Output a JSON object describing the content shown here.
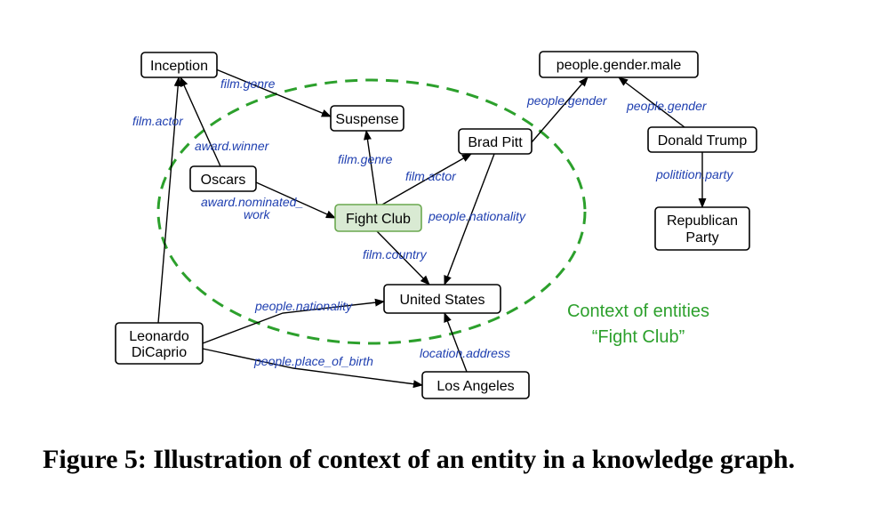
{
  "nodes": {
    "inception": "Inception",
    "suspense": "Suspense",
    "oscars": "Oscars",
    "fight_club": "Fight Club",
    "brad_pitt": "Brad Pitt",
    "people_gender_male": "people.gender.male",
    "donald_trump": "Donald Trump",
    "republican_party_line1": "Republican",
    "republican_party_line2": "Party",
    "united_states": "United States",
    "leonardo_line1": "Leonardo",
    "leonardo_line2": "DiCaprio",
    "los_angeles": "Los Angeles"
  },
  "edges": {
    "film_genre_inception": "film.genre",
    "film_actor_leonardo": "film.actor",
    "award_winner": "award.winner",
    "award_nominated_line1": "award.nominated_",
    "award_nominated_line2": "work",
    "film_genre_fightclub": "film.genre",
    "film_actor_bradpitt": "film.actor",
    "people_nationality_bradpitt": "people.nationality",
    "film_country": "film.country",
    "people_gender_bradpitt": "people.gender",
    "people_gender_trump": "people.gender",
    "politician_party": "politition.party",
    "people_nationality_leonardo": "people.nationality",
    "people_place_of_birth": "people.place_of_birth",
    "location_address": "location.address"
  },
  "context": {
    "line1": "Context of entities",
    "line2": "“Fight Club”",
    "color": "#2ca02c"
  },
  "colors": {
    "edge_label": "#1f3fb0",
    "highlight_fill": "#d9ead3",
    "highlight_stroke": "#6aa84f"
  },
  "caption": "Figure 5: Illustration of context of an entity in a knowledge graph."
}
